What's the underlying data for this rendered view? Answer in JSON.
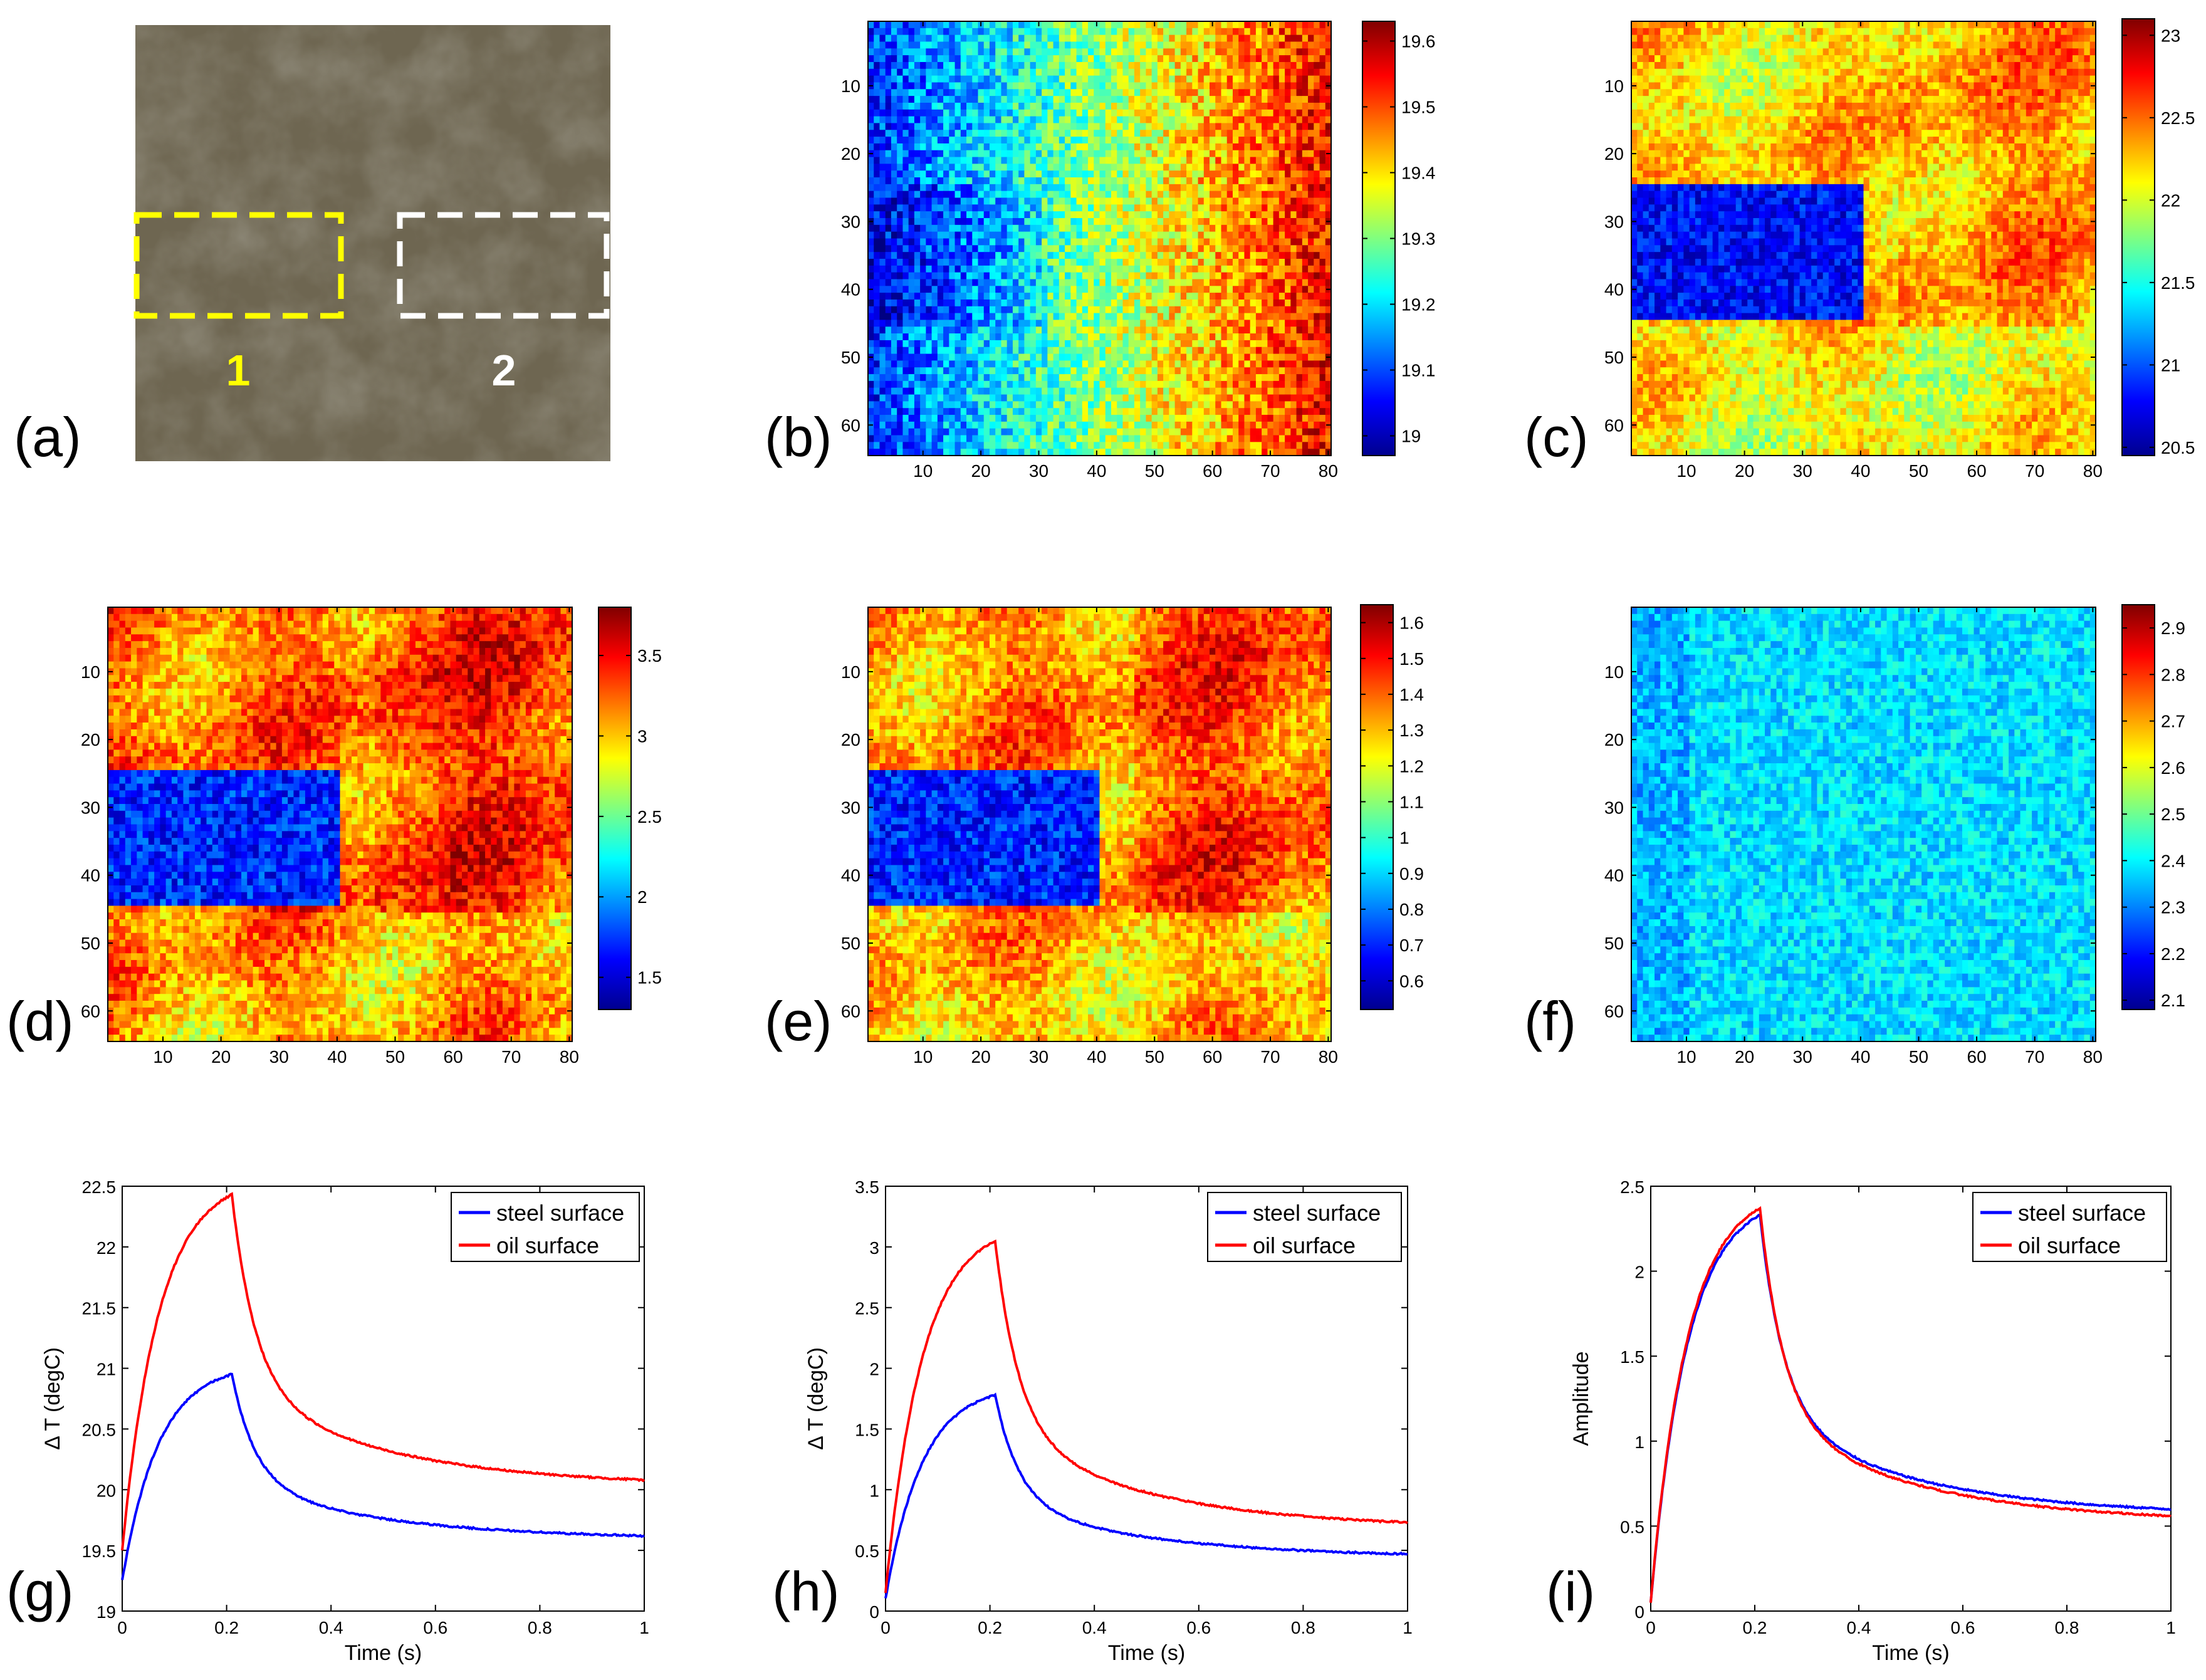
{
  "photo": {
    "label": "(a)",
    "regions": [
      {
        "name": "1",
        "color": "#ffff00"
      },
      {
        "name": "2",
        "color": "#ffffff"
      }
    ],
    "colors": {
      "base": "#6e6651",
      "dark": "#4a4436",
      "light": "#8a8168"
    }
  },
  "chart_data": [
    {
      "label": "(b)",
      "type": "heatmap",
      "xlim": [
        0.5,
        80.5
      ],
      "ylim": [
        0.5,
        64.5
      ],
      "xticks": [
        10,
        20,
        30,
        40,
        50,
        60,
        70,
        80
      ],
      "yticks": [
        10,
        20,
        30,
        40,
        50,
        60
      ],
      "colorbar": {
        "min": 18.97,
        "max": 19.63,
        "ticks": [
          "19",
          "19.1",
          "19.2",
          "19.3",
          "19.4",
          "19.5",
          "19.6"
        ],
        "tick_values": [
          19,
          19.1,
          19.2,
          19.3,
          19.4,
          19.5,
          19.6
        ]
      },
      "pattern": "gradient_noise",
      "description_values": {
        "left": 19.08,
        "right": 19.55
      }
    },
    {
      "label": "(c)",
      "type": "heatmap",
      "xlim": [
        0.5,
        80.5
      ],
      "ylim": [
        0.5,
        64.5
      ],
      "xticks": [
        10,
        20,
        30,
        40,
        50,
        60,
        70,
        80
      ],
      "yticks": [
        10,
        20,
        30,
        40,
        50,
        60
      ],
      "colorbar": {
        "min": 20.45,
        "max": 23.1,
        "ticks": [
          "20.5",
          "21",
          "21.5",
          "22",
          "22.5",
          "23"
        ],
        "tick_values": [
          20.5,
          21,
          21.5,
          22,
          22.5,
          23
        ]
      },
      "pattern": "oil_rect",
      "description_values": {
        "rect_value": 20.8,
        "background": 22.2
      }
    },
    {
      "label": "(d)",
      "type": "heatmap",
      "xlim": [
        0.5,
        80.5
      ],
      "ylim": [
        0.5,
        64.5
      ],
      "xticks": [
        10,
        20,
        30,
        40,
        50,
        60,
        70,
        80
      ],
      "yticks": [
        10,
        20,
        30,
        40,
        50,
        60
      ],
      "colorbar": {
        "min": 1.3,
        "max": 3.8,
        "ticks": [
          "1.5",
          "2",
          "2.5",
          "3",
          "3.5"
        ],
        "tick_values": [
          1.5,
          2,
          2.5,
          3,
          3.5
        ]
      },
      "pattern": "oil_rect",
      "description_values": {
        "rect_value": 1.7,
        "background": 3.2
      }
    },
    {
      "label": "(e)",
      "type": "heatmap",
      "xlim": [
        0.5,
        80.5
      ],
      "ylim": [
        0.5,
        64.5
      ],
      "xticks": [
        10,
        20,
        30,
        40,
        50,
        60,
        70,
        80
      ],
      "yticks": [
        10,
        20,
        30,
        40,
        50,
        60
      ],
      "colorbar": {
        "min": 0.52,
        "max": 1.65,
        "ticks": [
          "0.6",
          "0.7",
          "0.8",
          "0.9",
          "1",
          "1.1",
          "1.2",
          "1.3",
          "1.4",
          "1.5",
          "1.6"
        ],
        "tick_values": [
          0.6,
          0.7,
          0.8,
          0.9,
          1,
          1.1,
          1.2,
          1.3,
          1.4,
          1.5,
          1.6
        ]
      },
      "pattern": "oil_rect",
      "description_values": {
        "rect_value": 0.7,
        "background": 1.35
      }
    },
    {
      "label": "(f)",
      "type": "heatmap",
      "xlim": [
        0.5,
        80.5
      ],
      "ylim": [
        0.5,
        64.5
      ],
      "xticks": [
        10,
        20,
        30,
        40,
        50,
        60,
        70,
        80
      ],
      "yticks": [
        10,
        20,
        30,
        40,
        50,
        60
      ],
      "colorbar": {
        "min": 2.08,
        "max": 2.95,
        "ticks": [
          "2.1",
          "2.2",
          "2.3",
          "2.4",
          "2.5",
          "2.6",
          "2.7",
          "2.8",
          "2.9"
        ],
        "tick_values": [
          2.1,
          2.2,
          2.3,
          2.4,
          2.5,
          2.6,
          2.7,
          2.8,
          2.9
        ]
      },
      "pattern": "uniform_noise",
      "description_values": {
        "mean": 2.38
      }
    },
    {
      "label": "(g)",
      "type": "line",
      "xlabel": "Time (s)",
      "ylabel": "Δ T (degC)",
      "xlim": [
        0,
        1
      ],
      "ylim": [
        19,
        22.5
      ],
      "xticks": [
        "0",
        "0.2",
        "0.4",
        "0.6",
        "0.8",
        "1"
      ],
      "xtick_values": [
        0,
        0.2,
        0.4,
        0.6,
        0.8,
        1
      ],
      "yticks": [
        "19",
        "19.5",
        "20",
        "20.5",
        "21",
        "21.5",
        "22",
        "22.5"
      ],
      "ytick_values": [
        19,
        19.5,
        20,
        20.5,
        21,
        21.5,
        22,
        22.5
      ],
      "legend": "top-right",
      "series": [
        {
          "name": "steel surface",
          "color": "#0000ff",
          "start": 19.25,
          "peak": 20.95,
          "end": 19.62
        },
        {
          "name": "oil surface",
          "color": "#ff0000",
          "start": 19.5,
          "peak": 22.43,
          "end": 20.08
        }
      ],
      "peak_time": 0.21
    },
    {
      "label": "(h)",
      "type": "line",
      "xlabel": "Time (s)",
      "ylabel": "Δ T (degC)",
      "xlim": [
        0,
        1
      ],
      "ylim": [
        0,
        3.5
      ],
      "xticks": [
        "0",
        "0.2",
        "0.4",
        "0.6",
        "0.8",
        "1"
      ],
      "xtick_values": [
        0,
        0.2,
        0.4,
        0.6,
        0.8,
        1
      ],
      "yticks": [
        "0",
        "0.5",
        "1",
        "1.5",
        "2",
        "2.5",
        "3",
        "3.5"
      ],
      "ytick_values": [
        0,
        0.5,
        1,
        1.5,
        2,
        2.5,
        3,
        3.5
      ],
      "legend": "top-right",
      "series": [
        {
          "name": "steel surface",
          "color": "#0000ff",
          "start": 0.1,
          "peak": 1.78,
          "end": 0.47
        },
        {
          "name": "oil surface",
          "color": "#ff0000",
          "start": 0.15,
          "peak": 3.05,
          "end": 0.73
        }
      ],
      "peak_time": 0.21
    },
    {
      "label": "(i)",
      "type": "line",
      "xlabel": "Time (s)",
      "ylabel": "Amplitude",
      "xlim": [
        0,
        1
      ],
      "ylim": [
        0,
        2.5
      ],
      "xticks": [
        "0",
        "0.2",
        "0.4",
        "0.6",
        "0.8",
        "1"
      ],
      "xtick_values": [
        0,
        0.2,
        0.4,
        0.6,
        0.8,
        1
      ],
      "yticks": [
        "0",
        "0.5",
        "1",
        "1.5",
        "2",
        "2.5"
      ],
      "ytick_values": [
        0,
        0.5,
        1,
        1.5,
        2,
        2.5
      ],
      "legend": "top-right",
      "series": [
        {
          "name": "steel surface",
          "color": "#0000ff",
          "start": 0.05,
          "peak": 2.33,
          "end": 0.6
        },
        {
          "name": "oil surface",
          "color": "#ff0000",
          "start": 0.05,
          "peak": 2.37,
          "end": 0.56
        }
      ],
      "peak_time": 0.21
    }
  ]
}
